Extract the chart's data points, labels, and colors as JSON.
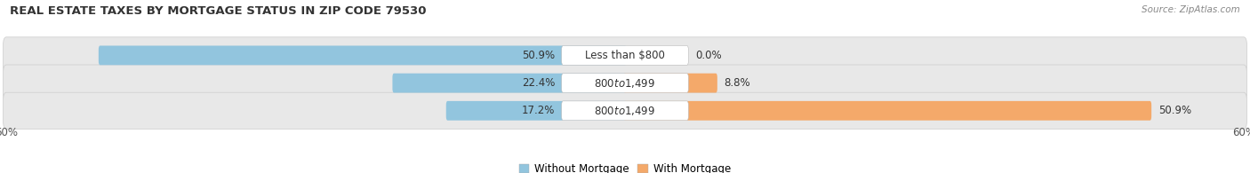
{
  "title": "REAL ESTATE TAXES BY MORTGAGE STATUS IN ZIP CODE 79530",
  "source": "Source: ZipAtlas.com",
  "rows": [
    {
      "label": "Less than $800",
      "without_mortgage": 50.9,
      "with_mortgage": 0.0
    },
    {
      "label": "$800 to $1,499",
      "without_mortgage": 22.4,
      "with_mortgage": 8.8
    },
    {
      "label": "$800 to $1,499",
      "without_mortgage": 17.2,
      "with_mortgage": 50.9
    }
  ],
  "axis_max": 60.0,
  "color_without": "#92C5DE",
  "color_with": "#F4A96A",
  "bar_row_bg": "#E8E8E8",
  "bar_row_border": "#cccccc",
  "legend_without": "Without Mortgage",
  "legend_with": "With Mortgage",
  "title_fontsize": 9.5,
  "source_fontsize": 7.5,
  "bar_label_fontsize": 8.5,
  "pct_label_fontsize": 8.5,
  "axis_label_fontsize": 8.5,
  "legend_fontsize": 8.5
}
